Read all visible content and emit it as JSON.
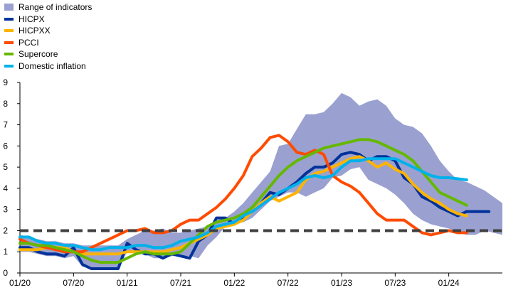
{
  "chart_data": {
    "type": "line",
    "title": "",
    "xlabel": "",
    "ylabel": "",
    "ylim": [
      0,
      9
    ],
    "y_ticks": [
      "0",
      "1",
      "2",
      "3",
      "4",
      "5",
      "6",
      "7",
      "8",
      "9"
    ],
    "x_ticks": [
      "01/20",
      "07/20",
      "01/21",
      "07/21",
      "01/22",
      "07/22",
      "01/23",
      "07/23",
      "01/24"
    ],
    "x_start": "2020-01",
    "reference_line": {
      "value": 2,
      "style": "dashed",
      "color": "#404040"
    },
    "legend_position": "top-left",
    "range_band": {
      "name": "Range of indicators",
      "color": "#9aa1d0",
      "upper": [
        1.8,
        1.7,
        1.6,
        1.5,
        1.5,
        1.4,
        1.4,
        1.3,
        1.3,
        1.3,
        1.3,
        1.3,
        1.6,
        1.8,
        2.0,
        2.0,
        2.1,
        1.9,
        1.9,
        2.0,
        2.1,
        2.2,
        2.5,
        2.6,
        2.9,
        3.3,
        3.8,
        4.3,
        4.8,
        6.0,
        6.1,
        6.8,
        7.5,
        7.5,
        7.6,
        8.0,
        8.5,
        8.3,
        7.9,
        8.1,
        8.2,
        7.9,
        7.3,
        7.0,
        6.9,
        6.6,
        6.0,
        5.3,
        4.8,
        4.4,
        4.3,
        4.1,
        3.9,
        3.6,
        3.3
      ],
      "lower": [
        1.0,
        1.0,
        0.9,
        0.8,
        0.8,
        0.7,
        0.8,
        0.3,
        0.2,
        0.2,
        0.2,
        0.2,
        1.0,
        1.0,
        0.9,
        0.7,
        0.7,
        0.8,
        0.8,
        0.8,
        0.7,
        1.3,
        1.7,
        2.2,
        2.3,
        2.4,
        2.6,
        3.0,
        3.4,
        3.6,
        3.8,
        3.8,
        3.6,
        3.8,
        4.0,
        4.5,
        4.6,
        4.9,
        5.0,
        4.4,
        4.2,
        4.0,
        3.7,
        3.3,
        2.8,
        2.5,
        2.3,
        2.2,
        2.1,
        1.9,
        1.8,
        1.8,
        2.0,
        1.9,
        1.8
      ]
    },
    "series": [
      {
        "name": "HICPX",
        "color": "#003299",
        "values": [
          1.2,
          1.2,
          1.0,
          0.9,
          0.9,
          0.8,
          1.2,
          0.4,
          0.2,
          0.2,
          0.2,
          0.2,
          1.4,
          1.1,
          0.9,
          0.9,
          0.7,
          0.9,
          0.8,
          0.7,
          1.5,
          1.8,
          2.6,
          2.6,
          2.3,
          2.6,
          2.9,
          3.3,
          3.8,
          3.7,
          4.0,
          4.3,
          4.7,
          5.0,
          5.0,
          5.2,
          5.6,
          5.7,
          5.6,
          5.3,
          5.5,
          5.5,
          5.3,
          4.5,
          4.2,
          3.6,
          3.4,
          3.1,
          2.9,
          2.7,
          2.9
        ],
        "extra": [
          2.9
        ]
      },
      {
        "name": "HICPXX",
        "color": "#ffb400",
        "values": [
          1.1,
          1.1,
          1.1,
          1.2,
          1.2,
          1.2,
          1.0,
          0.9,
          0.9,
          0.9,
          0.9,
          0.9,
          1.0,
          1.0,
          1.0,
          1.0,
          1.0,
          1.1,
          1.2,
          1.4,
          1.6,
          1.8,
          2.1,
          2.2,
          2.3,
          2.5,
          2.9,
          3.3,
          3.6,
          3.4,
          3.6,
          3.8,
          4.4,
          4.7,
          4.8,
          5.0,
          5.2,
          5.4,
          5.5,
          5.3,
          5.0,
          5.2,
          4.9,
          4.7,
          4.2,
          3.8,
          3.5,
          3.3,
          3.0,
          2.8,
          2.7
        ]
      },
      {
        "name": "PCCI",
        "color": "#ff4b00",
        "values": [
          1.6,
          1.4,
          1.3,
          1.2,
          1.1,
          1.0,
          1.0,
          1.0,
          1.2,
          1.4,
          1.6,
          1.8,
          2.0,
          2.0,
          2.1,
          1.9,
          1.9,
          2.0,
          2.3,
          2.5,
          2.5,
          2.8,
          3.1,
          3.5,
          4.0,
          4.6,
          5.5,
          5.9,
          6.4,
          6.5,
          6.2,
          5.7,
          5.6,
          5.8,
          5.6,
          4.6,
          4.3,
          4.1,
          3.8,
          3.3,
          2.8,
          2.5,
          2.5,
          2.5,
          2.2,
          1.9,
          1.8,
          1.9,
          2.0,
          1.9,
          1.9
        ]
      },
      {
        "name": "Supercore",
        "color": "#65b800",
        "values": [
          1.4,
          1.4,
          1.3,
          1.3,
          1.2,
          1.1,
          1.0,
          0.8,
          0.6,
          0.5,
          0.5,
          0.5,
          0.7,
          0.9,
          1.0,
          0.9,
          0.9,
          0.9,
          1.0,
          1.4,
          1.8,
          2.2,
          2.4,
          2.5,
          2.6,
          2.8,
          3.1,
          3.6,
          4.1,
          4.6,
          5.0,
          5.3,
          5.5,
          5.7,
          5.9,
          6.0,
          6.1,
          6.2,
          6.3,
          6.3,
          6.2,
          6.0,
          5.8,
          5.6,
          5.3,
          4.8,
          4.3,
          3.8,
          3.6,
          3.4,
          3.2
        ]
      },
      {
        "name": "Domestic inflation",
        "color": "#00b1ea",
        "values": [
          1.7,
          1.7,
          1.5,
          1.4,
          1.4,
          1.3,
          1.3,
          1.2,
          1.1,
          1.1,
          1.2,
          1.2,
          1.2,
          1.3,
          1.3,
          1.2,
          1.2,
          1.3,
          1.5,
          1.6,
          1.7,
          1.9,
          2.2,
          2.3,
          2.4,
          2.7,
          2.9,
          3.2,
          3.5,
          3.8,
          4.0,
          4.2,
          4.5,
          4.6,
          4.5,
          4.6,
          5.0,
          5.3,
          5.3,
          5.4,
          5.4,
          5.4,
          5.4,
          5.2,
          5.0,
          4.8,
          4.6,
          4.5,
          4.5,
          4.45,
          4.4
        ]
      }
    ]
  }
}
